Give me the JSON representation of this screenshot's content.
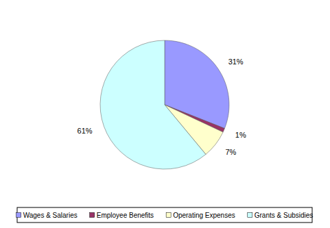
{
  "chart_data": {
    "type": "pie",
    "categories": [
      "Wages & Salaries",
      "Employee Benefits",
      "Operating Expenses",
      "Grants & Subsidies"
    ],
    "values": [
      31,
      1,
      7,
      61
    ],
    "value_labels": [
      "31%",
      "1%",
      "7%",
      "61%"
    ],
    "colors": [
      "#9999ff",
      "#993366",
      "#ffffcc",
      "#ccffff"
    ],
    "data_labels": true,
    "legend": "bottom"
  }
}
